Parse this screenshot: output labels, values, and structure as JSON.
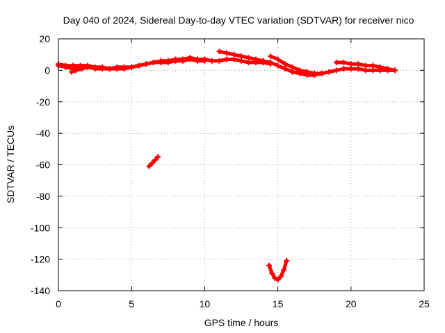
{
  "chart_data": {
    "type": "scatter",
    "title": "Day 040 of 2024, Sidereal Day-to-day VTEC variation (SDTVAR) for receiver nico",
    "xlabel": "GPS time / hours",
    "ylabel": "SDTVAR / TECUs",
    "xlim": [
      0,
      25
    ],
    "ylim": [
      -140,
      20
    ],
    "xticks": [
      0,
      5,
      10,
      15,
      20,
      25
    ],
    "yticks": [
      20,
      0,
      -20,
      -40,
      -60,
      -80,
      -100,
      -120,
      -140
    ],
    "grid": true,
    "series_color": "#ff0000",
    "series": [
      {
        "x": [
          0.0,
          0.5,
          1.0,
          1.5,
          2.0,
          2.5,
          3.0,
          3.5,
          4.0,
          4.5,
          5.0,
          5.5,
          6.0,
          6.5,
          7.0,
          7.5,
          8.0,
          8.5,
          9.0,
          9.5,
          10.0,
          10.5,
          11.0,
          11.5,
          12.0,
          12.5,
          13.0,
          13.5,
          14.0,
          14.5
        ],
        "y": [
          4,
          3,
          3,
          3,
          3,
          2,
          2,
          1,
          2,
          2,
          2,
          3,
          4,
          5,
          6,
          6,
          7,
          7,
          8,
          7,
          7,
          6,
          6,
          7,
          7,
          6,
          5,
          5,
          5,
          4
        ]
      },
      {
        "x": [
          0.0,
          0.5,
          1.0,
          1.5,
          2.0,
          2.5,
          3.0,
          3.5,
          4.0,
          4.5,
          5.0,
          5.5,
          6.0,
          6.5,
          7.0,
          7.5,
          8.0,
          8.5,
          9.0,
          9.5,
          10.0
        ],
        "y": [
          3,
          2,
          1,
          2,
          2,
          1,
          1,
          1,
          1,
          1,
          2,
          3,
          4,
          5,
          5,
          5,
          6,
          6,
          7,
          6,
          6
        ]
      },
      {
        "x": [
          0.9,
          1.2,
          1.6,
          2.0
        ],
        "y": [
          -1,
          0,
          1,
          2
        ]
      },
      {
        "x": [
          11.0,
          11.5,
          12.0,
          12.5,
          13.0,
          13.5,
          14.0,
          14.5,
          15.0,
          15.5,
          16.0,
          16.5,
          17.0,
          17.5,
          18.0,
          18.5,
          19.0,
          19.5,
          20.0,
          20.5,
          21.0,
          21.5,
          22.0,
          22.5,
          23.0
        ],
        "y": [
          12,
          11,
          10,
          9,
          8,
          7,
          6,
          5,
          3,
          1,
          -1,
          -2,
          -3,
          -3,
          -2,
          -1,
          0,
          1,
          1,
          1,
          0,
          0,
          0,
          0,
          0
        ]
      },
      {
        "x": [
          14.5,
          15.0,
          15.5,
          16.0,
          16.5,
          17.0,
          17.5,
          18.0
        ],
        "y": [
          9,
          7,
          4,
          2,
          0,
          -1,
          -2,
          -2
        ]
      },
      {
        "x": [
          19.0,
          19.5,
          20.0,
          20.5,
          21.0,
          21.5,
          22.0,
          22.5,
          23.0
        ],
        "y": [
          5,
          5,
          4,
          4,
          3,
          3,
          2,
          1,
          0
        ]
      },
      {
        "x": [
          6.2,
          6.4,
          6.6,
          6.8
        ],
        "y": [
          -61,
          -59,
          -57,
          -55
        ]
      },
      {
        "x": [
          14.4,
          14.6,
          14.8,
          15.0,
          15.2,
          15.4,
          15.6
        ],
        "y": [
          -124,
          -129,
          -132,
          -133,
          -131,
          -127,
          -121
        ]
      }
    ]
  }
}
